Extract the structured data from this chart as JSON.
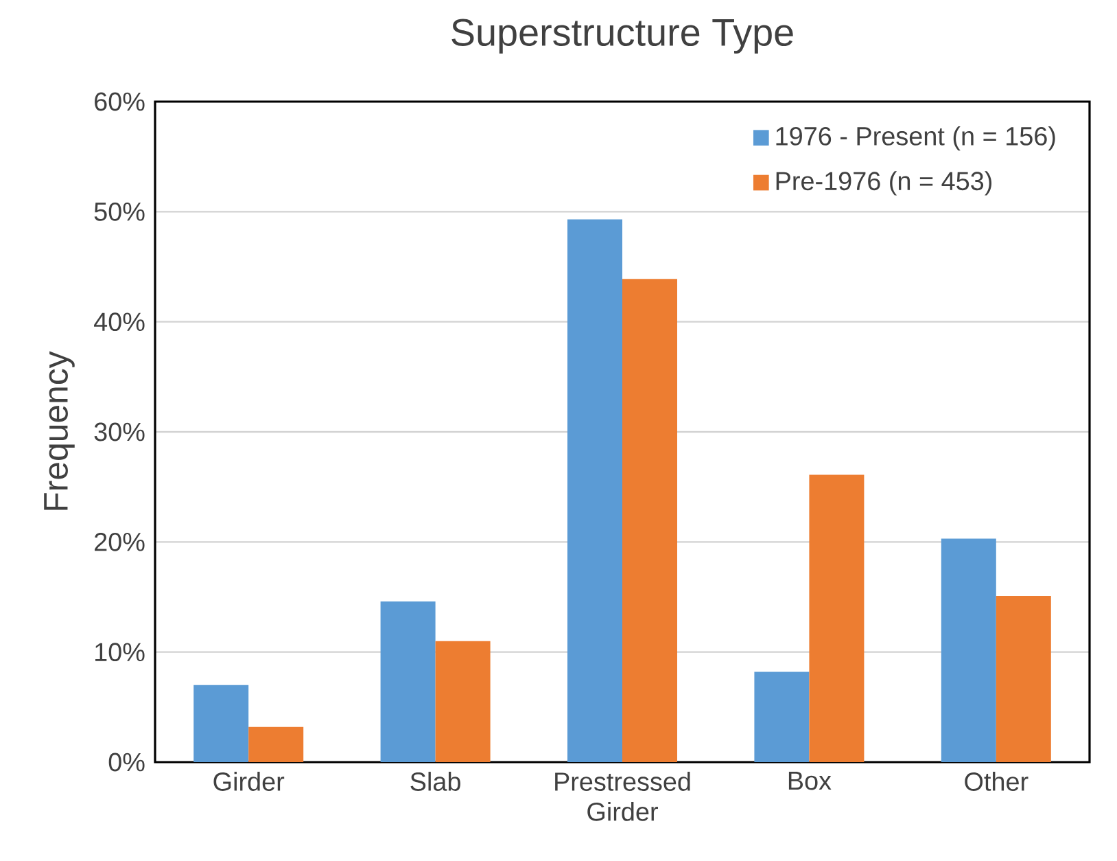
{
  "chart_data": {
    "type": "bar",
    "title": "Superstructure Type",
    "ylabel": "Frequency",
    "categories": [
      "Girder",
      "Slab",
      "Prestressed Girder",
      "Box",
      "Other"
    ],
    "series": [
      {
        "name": "1976 - Present (n = 156)",
        "color": "#5b9bd5",
        "values": [
          7.0,
          14.6,
          49.3,
          8.2,
          20.3
        ]
      },
      {
        "name": "Pre-1976 (n = 453)",
        "color": "#ed7d31",
        "values": [
          3.2,
          11.0,
          43.9,
          26.1,
          15.1
        ]
      }
    ],
    "ylim": [
      0,
      60
    ],
    "yticks": [
      {
        "value": 0,
        "label": "0%"
      },
      {
        "value": 10,
        "label": "10%"
      },
      {
        "value": 20,
        "label": "20%"
      },
      {
        "value": 30,
        "label": "30%"
      },
      {
        "value": 40,
        "label": "40%"
      },
      {
        "value": 50,
        "label": "50%"
      },
      {
        "value": 60,
        "label": "60%"
      }
    ],
    "grid": "y",
    "legend": "top right"
  }
}
